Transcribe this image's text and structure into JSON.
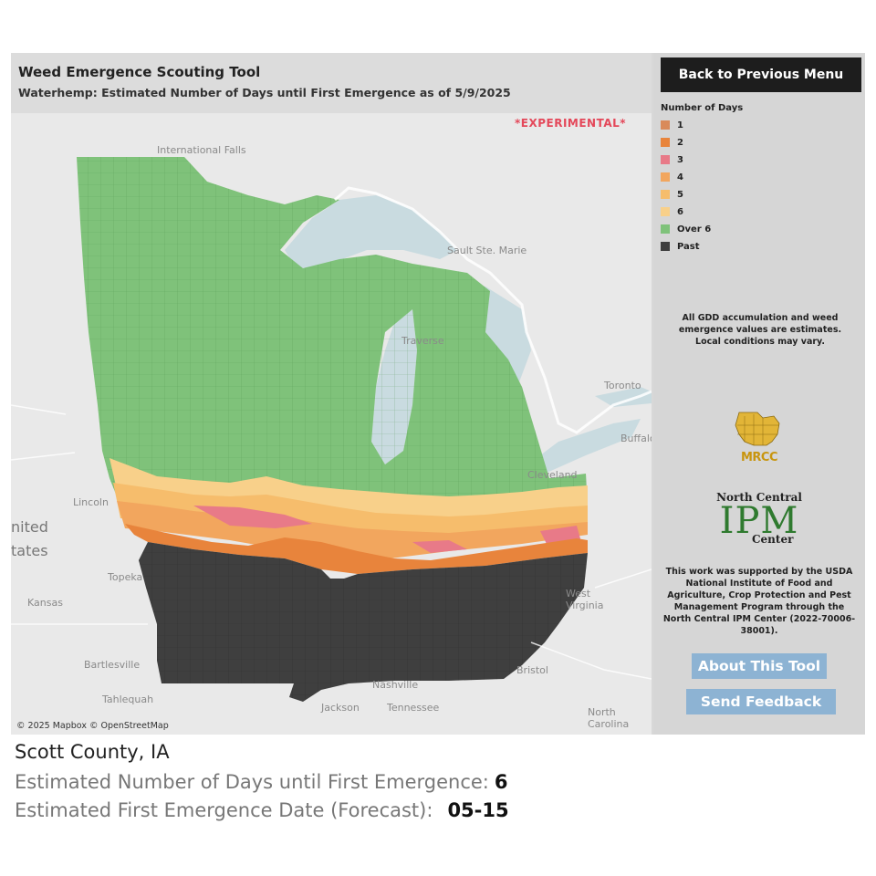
{
  "header": {
    "title": "Weed Emergence Scouting Tool",
    "subtitle": "Waterhemp: Estimated Number of Days until First Emergence as of 5/9/2025"
  },
  "map": {
    "experimental_label": "*EXPERIMENTAL*",
    "attribution": "© 2025 Mapbox © OpenStreetMap",
    "place_labels": [
      "International Falls",
      "Sault Ste. Marie",
      "Traverse",
      "Toronto",
      "Buffalo",
      "Cleveland",
      "Lincoln",
      "Topeka",
      "Kansas",
      "Bartlesville",
      "Tahlequah",
      "Jackson",
      "Nashville",
      "Tennessee",
      "Bristol",
      "West Virginia",
      "North Carolina"
    ],
    "country_label_parts": [
      "nited",
      "tates"
    ]
  },
  "sidebar": {
    "back_button": "Back to Previous Menu",
    "legend_title": "Number of Days",
    "legend": [
      {
        "label": "1",
        "color": "#d98a5a"
      },
      {
        "label": "2",
        "color": "#e8843c"
      },
      {
        "label": "3",
        "color": "#e87a88"
      },
      {
        "label": "4",
        "color": "#f2a65e"
      },
      {
        "label": "5",
        "color": "#f6bd6c"
      },
      {
        "label": "6",
        "color": "#f8d08a"
      },
      {
        "label": "Over 6",
        "color": "#7fc27a"
      },
      {
        "label": "Past",
        "color": "#3f3f3f"
      }
    ],
    "disclaimer": "All GDD accumulation and weed emergence values are estimates. Local conditions may vary.",
    "mrcc_logo_text": "MRCC",
    "ipm_logo": {
      "top": "North Central",
      "middle": "IPM",
      "bottom": "Center"
    },
    "support_text": "This work was supported by the USDA National Institute of Food and Agriculture, Crop Protection and Pest Management Program through the North Central IPM Center (2022-70006-38001).",
    "about_button": "About This Tool",
    "feedback_button": "Send Feedback"
  },
  "info": {
    "county": "Scott County, IA",
    "days_label": "Estimated Number of Days until First Emergence:",
    "days_value": "6",
    "date_label": "Estimated First Emergence Date (Forecast):",
    "date_value": "05-15"
  },
  "colors": {
    "over6": "#7fc27a",
    "past": "#3f3f3f",
    "water": "#c9dbe0",
    "land": "#e9e9e9",
    "buttons": "#8db3d3"
  }
}
